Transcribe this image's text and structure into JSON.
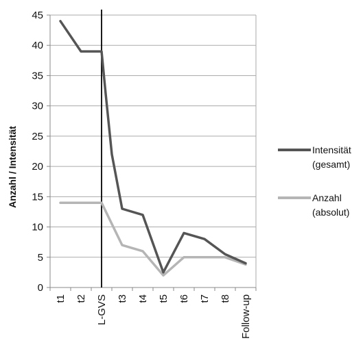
{
  "chart_data": {
    "type": "line",
    "x": [
      "t1",
      "t2",
      "L-GVS",
      "t3",
      "t4",
      "t5",
      "t6",
      "t7",
      "t8",
      "Follow-up"
    ],
    "ylabel": "Anzahl / Intensität",
    "ylim": [
      0,
      45
    ],
    "yticks": [
      0,
      5,
      10,
      15,
      20,
      25,
      30,
      35,
      40,
      45
    ],
    "grid": "horizontal",
    "legend_position": "right",
    "vertical_marker_at": "L-GVS",
    "series": [
      {
        "name_lines": [
          "Intensität",
          "(gesamt)"
        ],
        "color": "#555555",
        "points": [
          {
            "x": 0,
            "y": 44
          },
          {
            "x": 1,
            "y": 39
          },
          {
            "x": 2,
            "y": 39
          },
          {
            "x": 2.2,
            "y": 32
          },
          {
            "x": 2.5,
            "y": 22
          },
          {
            "x": 3,
            "y": 13
          },
          {
            "x": 4,
            "y": 12
          },
          {
            "x": 5,
            "y": 2.5
          },
          {
            "x": 6,
            "y": 9
          },
          {
            "x": 7,
            "y": 8
          },
          {
            "x": 8,
            "y": 5.5
          },
          {
            "x": 9,
            "y": 4
          }
        ]
      },
      {
        "name_lines": [
          "Anzahl",
          "(absolut)"
        ],
        "color": "#b5b5b5",
        "points": [
          {
            "x": 0,
            "y": 14
          },
          {
            "x": 1,
            "y": 14
          },
          {
            "x": 2,
            "y": 14
          },
          {
            "x": 3,
            "y": 7
          },
          {
            "x": 4,
            "y": 6
          },
          {
            "x": 5,
            "y": 2
          },
          {
            "x": 6,
            "y": 5
          },
          {
            "x": 7,
            "y": 5
          },
          {
            "x": 8,
            "y": 5
          },
          {
            "x": 9,
            "y": 3.8
          }
        ]
      }
    ]
  }
}
